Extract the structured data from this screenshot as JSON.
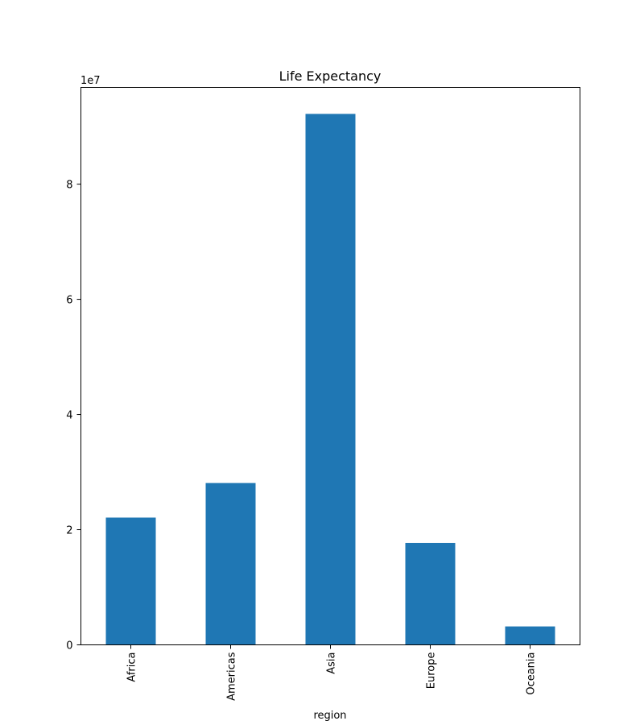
{
  "chart_data": {
    "type": "bar",
    "title": "Life Expectancy",
    "xlabel": "region",
    "ylabel": "",
    "categories": [
      "Africa",
      "Americas",
      "Asia",
      "Europe",
      "Oceania"
    ],
    "values": [
      22100000,
      28100000,
      92200000,
      17700000,
      3200000
    ],
    "ylim": [
      0,
      96800000
    ],
    "y_scale_factor": 10000000,
    "y_offset_label": "1e7",
    "y_ticks": [
      0,
      20000000,
      40000000,
      60000000,
      80000000
    ],
    "y_tick_labels": [
      "0",
      "2",
      "4",
      "6",
      "8"
    ],
    "grid": false,
    "bar_color": "#1f77b4"
  }
}
